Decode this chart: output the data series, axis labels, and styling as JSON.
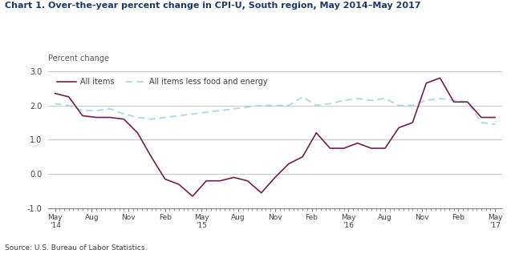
{
  "title": "Chart 1. Over-the-year percent change in CPI-U, South region, May 2014–May 2017",
  "ylabel": "Percent change",
  "source": "Source: U.S. Bureau of Labor Statistics.",
  "ylim": [
    -1.0,
    3.0
  ],
  "yticks": [
    -1.0,
    0.0,
    1.0,
    2.0,
    3.0
  ],
  "x_labels": [
    "May\n'14",
    "Aug",
    "Nov",
    "Feb",
    "May\n'15",
    "Aug",
    "Nov",
    "Feb",
    "May\n'16",
    "Aug",
    "Nov",
    "Feb",
    "May\n'17"
  ],
  "all_items": [
    2.35,
    2.25,
    1.7,
    1.65,
    1.65,
    1.6,
    1.2,
    0.5,
    -0.15,
    -0.3,
    -0.65,
    -0.2,
    -0.2,
    -0.1,
    -0.2,
    -0.55,
    -0.1,
    0.3,
    0.5,
    1.2,
    0.75,
    0.75,
    0.9,
    0.75,
    0.75,
    1.35,
    1.5,
    2.65,
    2.8,
    2.1,
    2.1,
    1.65,
    1.65
  ],
  "all_items_less": [
    2.05,
    2.0,
    1.85,
    1.85,
    1.9,
    1.75,
    1.65,
    1.6,
    1.65,
    1.7,
    1.75,
    1.8,
    1.85,
    1.9,
    1.95,
    2.0,
    2.0,
    2.0,
    2.25,
    2.0,
    2.05,
    2.15,
    2.2,
    2.15,
    2.2,
    2.0,
    2.0,
    2.15,
    2.2,
    2.15,
    2.1,
    1.5,
    1.45
  ],
  "all_items_color": "#722050",
  "all_items_less_color": "#a8d4e6",
  "title_color": "#1f3864",
  "ylabel_color": "#595959",
  "background_color": "#ffffff",
  "grid_color": "#c0c0c0",
  "tick_label_color": "#404040"
}
